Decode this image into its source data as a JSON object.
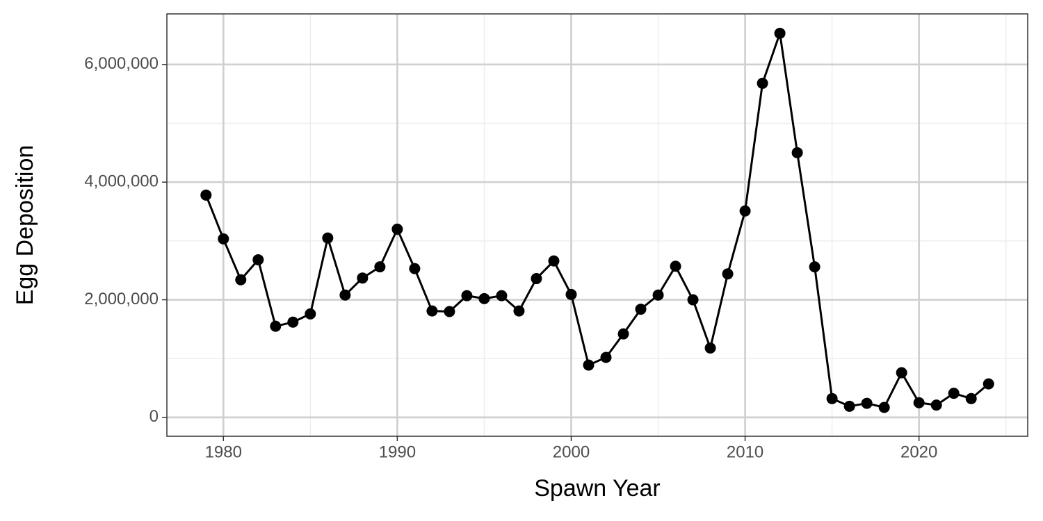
{
  "chart_data": {
    "type": "line",
    "x_label": "Spawn Year",
    "y_label": "Egg Deposition",
    "x": [
      1979,
      1980,
      1981,
      1982,
      1983,
      1984,
      1985,
      1986,
      1987,
      1988,
      1989,
      1990,
      1991,
      1992,
      1993,
      1994,
      1995,
      1996,
      1997,
      1998,
      1999,
      2000,
      2001,
      2002,
      2003,
      2004,
      2005,
      2006,
      2007,
      2008,
      2009,
      2010,
      2011,
      2012,
      2013,
      2014,
      2015,
      2016,
      2017,
      2018,
      2019,
      2020,
      2021,
      2022,
      2023,
      2024
    ],
    "values": [
      3780000,
      3035000,
      2340000,
      2680000,
      1550000,
      1620000,
      1760000,
      3050000,
      2080000,
      2370000,
      2560000,
      3200000,
      2530000,
      1810000,
      1800000,
      2070000,
      2020000,
      2070000,
      1810000,
      2360000,
      2660000,
      2090000,
      890000,
      1020000,
      1420000,
      1840000,
      2080000,
      2570000,
      2000000,
      1180000,
      2440000,
      3510000,
      5680000,
      6530000,
      4500000,
      2560000,
      320000,
      190000,
      240000,
      170000,
      760000,
      250000,
      210000,
      410000,
      320000,
      570000
    ],
    "color": "#000000",
    "markers": true,
    "xlim": [
      1976.75,
      2026.25
    ],
    "xticks": [
      1980,
      1990,
      2000,
      2010,
      2020
    ],
    "x_minor_grid": [
      1985,
      1995,
      2005,
      2015,
      2025
    ],
    "ylim": [
      -320000,
      6860000
    ],
    "yticks": [
      0,
      {
        "value": 2000000,
        "label": "2,000,000"
      },
      {
        "value": 4000000,
        "label": "4,000,000"
      },
      {
        "value": 6000000,
        "label": "6,000,000"
      }
    ],
    "y_minor_grid": [
      1000000,
      3000000,
      5000000
    ],
    "grid": true
  }
}
